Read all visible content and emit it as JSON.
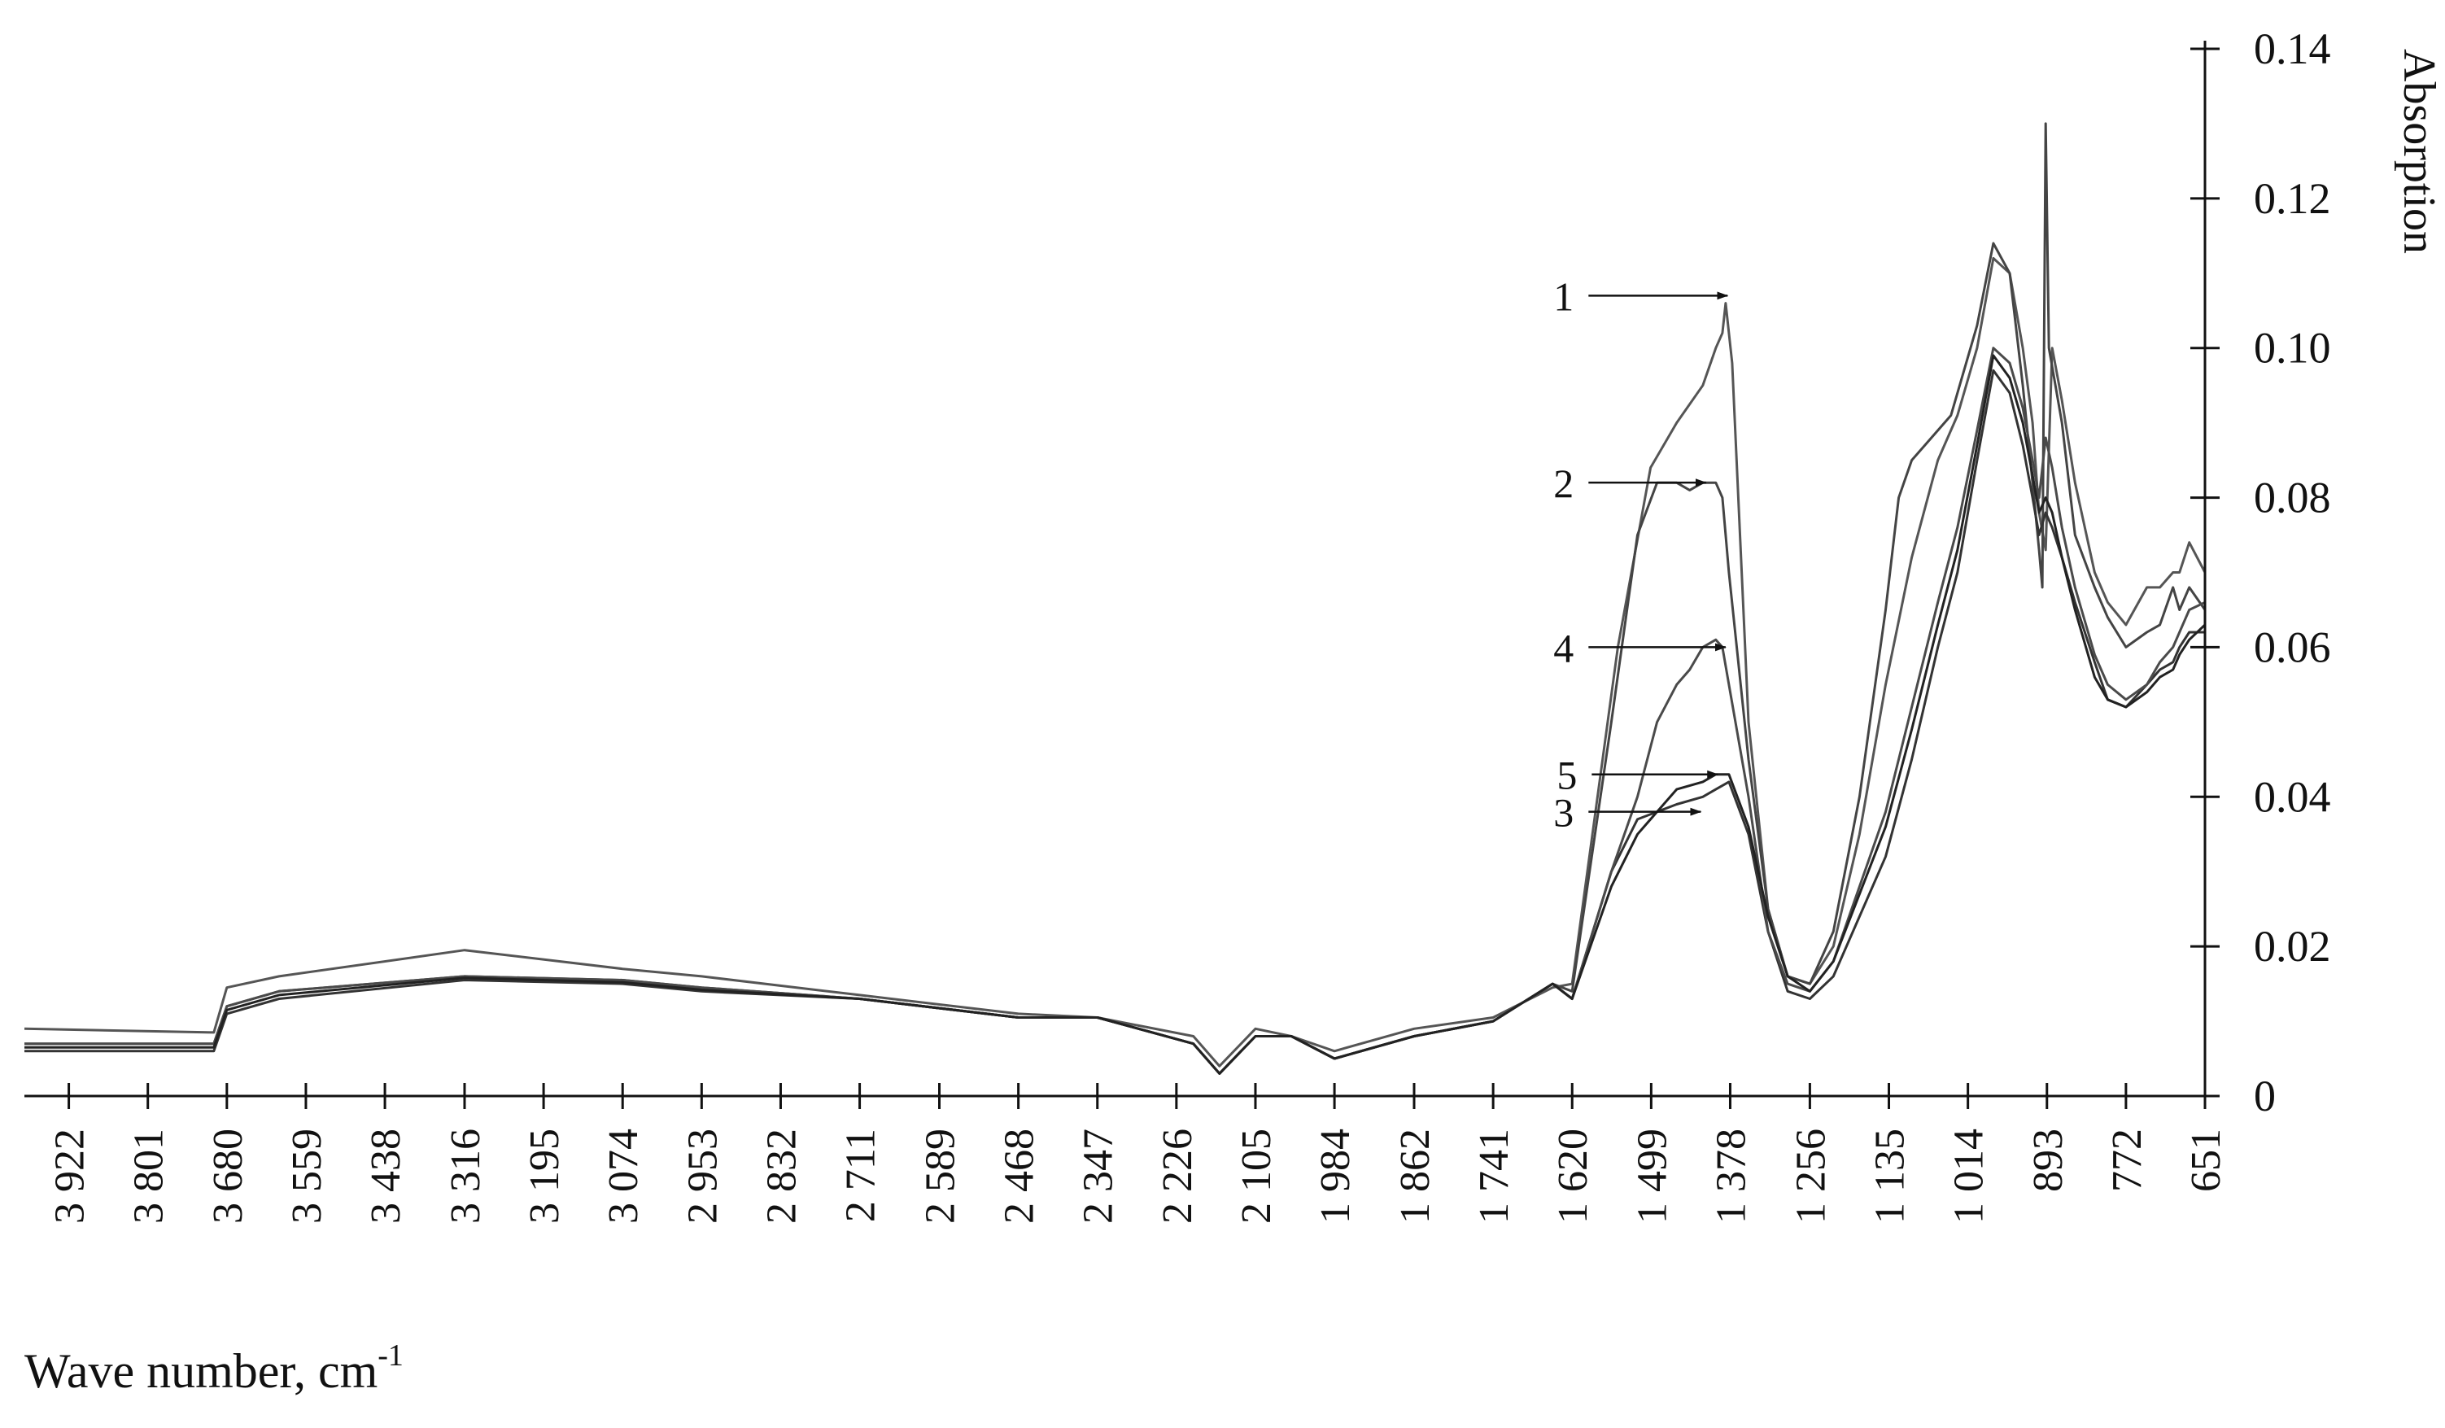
{
  "chart_data": {
    "type": "line",
    "xlabel": "Wave number, cm",
    "xlabel_superscript": "-1",
    "ylabel": "Absorption",
    "x_reversed": true,
    "xlim": [
      3990,
      651
    ],
    "ylim": [
      0,
      0.14
    ],
    "grid": false,
    "y_ticks": [
      0,
      0.02,
      0.04,
      0.06,
      0.08,
      0.1,
      0.12,
      0.14
    ],
    "y_tick_labels": [
      "0",
      "0.02",
      "0.04",
      "0.06",
      "0.08",
      "0.10",
      "0.12",
      "0.14"
    ],
    "x_ticks": [
      3922,
      3801,
      3680,
      3559,
      3438,
      3316,
      3195,
      3074,
      2953,
      2832,
      2711,
      2589,
      2468,
      2347,
      2226,
      2105,
      1984,
      1862,
      1741,
      1620,
      1499,
      1378,
      1256,
      1135,
      1014,
      893,
      772,
      651
    ],
    "x_tick_labels": [
      "3 922",
      "3 801",
      "3 680",
      "3 559",
      "3 438",
      "3 316",
      "3 195",
      "3 074",
      "2 953",
      "2 832",
      "2 711",
      "2 589",
      "2 468",
      "2 347",
      "2 226",
      "2 105",
      "1 984",
      "1 862",
      "1 741",
      "1 620",
      "1 499",
      "1 378",
      "1 256",
      "1 135",
      "1 014",
      "893",
      "772",
      "651"
    ],
    "series": [
      {
        "name": "1",
        "x": [
          3990,
          3700,
          3680,
          3600,
          3316,
          3074,
          2953,
          2711,
          2468,
          2347,
          2200,
          2160,
          2105,
          2050,
          1984,
          1862,
          1741,
          1650,
          1620,
          1550,
          1500,
          1460,
          1420,
          1400,
          1390,
          1385,
          1375,
          1350,
          1320,
          1290,
          1256,
          1220,
          1180,
          1140,
          1100,
          1060,
          1030,
          1000,
          975,
          950,
          930,
          915,
          905,
          895,
          885,
          870,
          850,
          820,
          800,
          772,
          740,
          720,
          700,
          690,
          675,
          651
        ],
        "y": [
          0.009,
          0.0085,
          0.0145,
          0.016,
          0.0195,
          0.017,
          0.016,
          0.0135,
          0.011,
          0.0105,
          0.008,
          0.004,
          0.009,
          0.008,
          0.006,
          0.009,
          0.0105,
          0.0145,
          0.015,
          0.06,
          0.084,
          0.09,
          0.095,
          0.1,
          0.102,
          0.106,
          0.098,
          0.05,
          0.025,
          0.016,
          0.015,
          0.02,
          0.035,
          0.055,
          0.072,
          0.085,
          0.091,
          0.1,
          0.112,
          0.11,
          0.1,
          0.09,
          0.078,
          0.073,
          0.1,
          0.093,
          0.082,
          0.07,
          0.066,
          0.063,
          0.068,
          0.068,
          0.07,
          0.07,
          0.074,
          0.07
        ]
      },
      {
        "name": "2",
        "x": [
          3990,
          3700,
          3680,
          3600,
          3316,
          3074,
          2953,
          2711,
          2468,
          2347,
          2200,
          2160,
          2105,
          2050,
          1984,
          1862,
          1741,
          1650,
          1620,
          1560,
          1520,
          1490,
          1460,
          1440,
          1420,
          1400,
          1390,
          1380,
          1350,
          1320,
          1290,
          1256,
          1220,
          1180,
          1140,
          1120,
          1100,
          1080,
          1040,
          1000,
          975,
          950,
          930,
          915,
          905,
          900,
          895,
          890,
          870,
          850,
          820,
          800,
          772,
          740,
          720,
          700,
          690,
          675,
          651
        ],
        "y": [
          0.007,
          0.007,
          0.012,
          0.014,
          0.016,
          0.0155,
          0.0145,
          0.013,
          0.0105,
          0.0105,
          0.007,
          0.003,
          0.008,
          0.008,
          0.005,
          0.008,
          0.01,
          0.015,
          0.014,
          0.05,
          0.075,
          0.082,
          0.082,
          0.081,
          0.082,
          0.082,
          0.08,
          0.07,
          0.045,
          0.025,
          0.016,
          0.015,
          0.022,
          0.04,
          0.065,
          0.08,
          0.085,
          0.087,
          0.091,
          0.103,
          0.114,
          0.11,
          0.095,
          0.082,
          0.073,
          0.068,
          0.13,
          0.1,
          0.09,
          0.075,
          0.068,
          0.064,
          0.06,
          0.062,
          0.063,
          0.068,
          0.065,
          0.068,
          0.065
        ]
      },
      {
        "name": "3",
        "x": [
          3990,
          3700,
          3680,
          3600,
          3316,
          3074,
          2953,
          2711,
          2468,
          2347,
          2200,
          2160,
          2105,
          2050,
          1984,
          1862,
          1741,
          1650,
          1620,
          1560,
          1520,
          1490,
          1460,
          1420,
          1400,
          1380,
          1350,
          1320,
          1290,
          1256,
          1220,
          1180,
          1140,
          1100,
          1060,
          1030,
          1000,
          975,
          950,
          930,
          915,
          905,
          895,
          885,
          870,
          850,
          820,
          800,
          772,
          740,
          720,
          700,
          690,
          675,
          651
        ],
        "y": [
          0.006,
          0.006,
          0.011,
          0.013,
          0.0155,
          0.015,
          0.014,
          0.013,
          0.0105,
          0.0105,
          0.007,
          0.003,
          0.008,
          0.008,
          0.005,
          0.008,
          0.01,
          0.015,
          0.013,
          0.03,
          0.037,
          0.038,
          0.039,
          0.04,
          0.041,
          0.042,
          0.035,
          0.022,
          0.014,
          0.013,
          0.016,
          0.024,
          0.032,
          0.045,
          0.06,
          0.07,
          0.085,
          0.097,
          0.094,
          0.087,
          0.08,
          0.075,
          0.078,
          0.076,
          0.072,
          0.066,
          0.058,
          0.053,
          0.052,
          0.055,
          0.057,
          0.058,
          0.06,
          0.062,
          0.062
        ]
      },
      {
        "name": "4",
        "x": [
          3990,
          3700,
          3680,
          3600,
          3316,
          3074,
          2953,
          2711,
          2468,
          2347,
          2200,
          2160,
          2105,
          2050,
          1984,
          1862,
          1741,
          1650,
          1620,
          1560,
          1520,
          1490,
          1460,
          1440,
          1420,
          1400,
          1390,
          1380,
          1350,
          1320,
          1290,
          1256,
          1220,
          1180,
          1140,
          1100,
          1060,
          1030,
          1000,
          975,
          950,
          930,
          915,
          905,
          895,
          885,
          870,
          850,
          820,
          800,
          772,
          740,
          720,
          700,
          690,
          675,
          651
        ],
        "y": [
          0.007,
          0.007,
          0.012,
          0.014,
          0.016,
          0.0155,
          0.0145,
          0.013,
          0.0105,
          0.0105,
          0.007,
          0.003,
          0.008,
          0.008,
          0.005,
          0.008,
          0.01,
          0.015,
          0.013,
          0.03,
          0.04,
          0.05,
          0.055,
          0.057,
          0.06,
          0.061,
          0.06,
          0.055,
          0.04,
          0.022,
          0.015,
          0.014,
          0.018,
          0.028,
          0.038,
          0.052,
          0.066,
          0.076,
          0.089,
          0.1,
          0.098,
          0.092,
          0.085,
          0.08,
          0.088,
          0.084,
          0.076,
          0.068,
          0.059,
          0.055,
          0.053,
          0.055,
          0.058,
          0.06,
          0.062,
          0.065,
          0.066
        ]
      },
      {
        "name": "5",
        "x": [
          3990,
          3700,
          3680,
          3600,
          3316,
          3074,
          2953,
          2711,
          2468,
          2347,
          2200,
          2160,
          2105,
          2050,
          1984,
          1862,
          1741,
          1650,
          1620,
          1560,
          1520,
          1490,
          1460,
          1420,
          1400,
          1380,
          1350,
          1320,
          1290,
          1256,
          1220,
          1180,
          1140,
          1100,
          1060,
          1030,
          1000,
          975,
          950,
          930,
          915,
          905,
          895,
          885,
          870,
          850,
          820,
          800,
          772,
          740,
          720,
          700,
          690,
          675,
          651
        ],
        "y": [
          0.0065,
          0.0065,
          0.0115,
          0.0135,
          0.0158,
          0.0152,
          0.0142,
          0.013,
          0.0105,
          0.0105,
          0.007,
          0.003,
          0.008,
          0.008,
          0.005,
          0.008,
          0.01,
          0.015,
          0.013,
          0.028,
          0.035,
          0.038,
          0.041,
          0.042,
          0.043,
          0.043,
          0.036,
          0.024,
          0.016,
          0.014,
          0.018,
          0.027,
          0.036,
          0.049,
          0.063,
          0.073,
          0.087,
          0.099,
          0.096,
          0.09,
          0.083,
          0.078,
          0.08,
          0.078,
          0.072,
          0.065,
          0.056,
          0.053,
          0.052,
          0.054,
          0.056,
          0.057,
          0.059,
          0.061,
          0.063
        ]
      }
    ],
    "annotations": [
      {
        "label": "1",
        "target_x": 1382,
        "target_y": 0.107,
        "from_x": 1595,
        "from_y": 0.107
      },
      {
        "label": "2",
        "target_x": 1415,
        "target_y": 0.082,
        "from_x": 1595,
        "from_y": 0.082
      },
      {
        "label": "4",
        "target_x": 1385,
        "target_y": 0.06,
        "from_x": 1595,
        "from_y": 0.06
      },
      {
        "label": "5",
        "target_x": 1397,
        "target_y": 0.043,
        "from_x": 1590,
        "from_y": 0.043
      },
      {
        "label": "3",
        "target_x": 1423,
        "target_y": 0.038,
        "from_x": 1595,
        "from_y": 0.038
      }
    ]
  }
}
